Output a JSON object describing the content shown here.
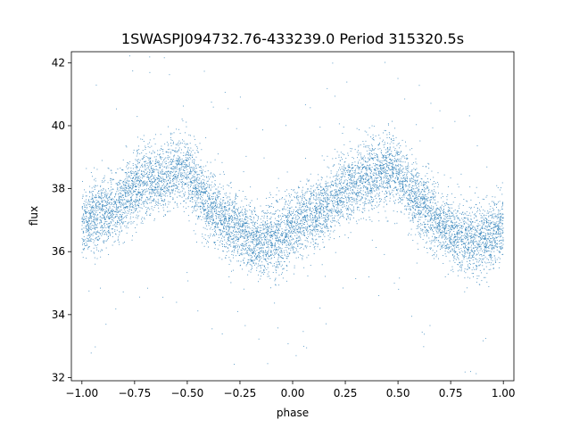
{
  "chart_data": {
    "type": "scatter",
    "title": "1SWASPJ094732.76-433239.0 Period 315320.5s",
    "xlabel": "phase",
    "ylabel": "flux",
    "xlim": [
      -1.05,
      1.05
    ],
    "ylim": [
      31.9,
      42.35
    ],
    "xticks": [
      -1.0,
      -0.75,
      -0.5,
      -0.25,
      0.0,
      0.25,
      0.5,
      0.75,
      1.0
    ],
    "xtick_labels": [
      "−1.00",
      "−0.75",
      "−0.50",
      "−0.25",
      "0.00",
      "0.25",
      "0.50",
      "0.75",
      "1.00"
    ],
    "yticks": [
      32,
      34,
      36,
      38,
      40,
      42
    ],
    "ytick_labels": [
      "32",
      "34",
      "36",
      "38",
      "40",
      "42"
    ],
    "grid": false,
    "marker_color": "#1f77b4",
    "phase_range": [
      -1.0,
      1.0
    ],
    "trend": {
      "phase": [
        0.0,
        0.05,
        0.1,
        0.15,
        0.2,
        0.25,
        0.3,
        0.35,
        0.4,
        0.45,
        0.5,
        0.55,
        0.6,
        0.65,
        0.7,
        0.75,
        0.8,
        0.85,
        0.9,
        0.95,
        1.0
      ],
      "flux": [
        36.9,
        37.1,
        37.2,
        37.3,
        37.7,
        38.0,
        38.2,
        38.3,
        38.4,
        38.6,
        38.5,
        38.0,
        37.5,
        37.2,
        36.9,
        36.7,
        36.4,
        36.3,
        36.4,
        36.5,
        36.9
      ]
    },
    "scatter_std": 0.55,
    "n_points": 9000
  }
}
